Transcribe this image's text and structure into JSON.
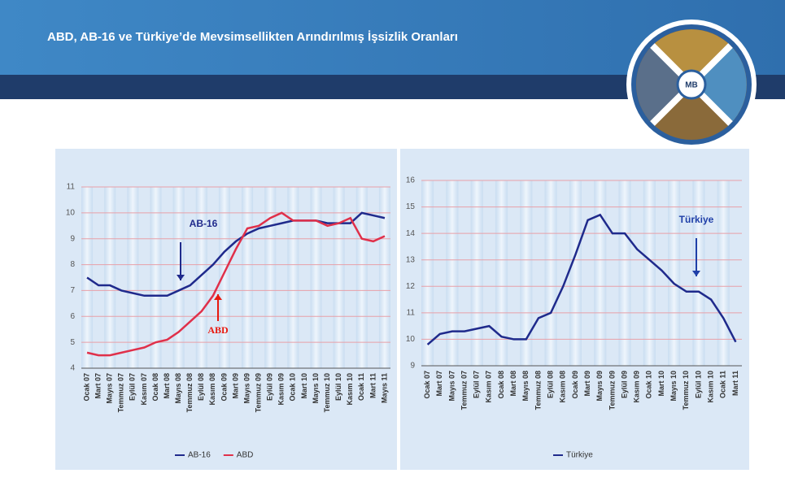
{
  "title": "ABD, AB-16 ve Türkiye’de Mevsimsellikten Arındırılmış İşsizlik Oranları",
  "chart_data": [
    {
      "type": "line",
      "categories": [
        "Ocak 07",
        "Mart 07",
        "Mayıs 07",
        "Temmuz 07",
        "Eylül 07",
        "Kasım 07",
        "Ocak 08",
        "Mart 08",
        "Mayıs 08",
        "Temmuz 08",
        "Eylül 08",
        "Kasım 08",
        "Ocak 09",
        "Mart 09",
        "Mayıs 09",
        "Temmuz 09",
        "Eylül 09",
        "Kasım 09",
        "Ocak 10",
        "Mart 10",
        "Mayıs 10",
        "Temmuz 10",
        "Eylül 10",
        "Kasım 10",
        "Ocak 11",
        "Mart 11",
        "Mayıs 11"
      ],
      "series": [
        {
          "name": "AB-16",
          "color": "#1f2a8c",
          "values": [
            7.5,
            7.2,
            7.2,
            7.0,
            6.9,
            6.8,
            6.8,
            6.8,
            7.0,
            7.2,
            7.6,
            8.0,
            8.5,
            8.9,
            9.2,
            9.4,
            9.5,
            9.6,
            9.7,
            9.7,
            9.7,
            9.6,
            9.6,
            9.6,
            10.0,
            9.9,
            9.8
          ]
        },
        {
          "name": "ABD",
          "color": "#e0304a",
          "values": [
            4.6,
            4.5,
            4.5,
            4.6,
            4.7,
            4.8,
            5.0,
            5.1,
            5.4,
            5.8,
            6.2,
            6.8,
            7.7,
            8.6,
            9.4,
            9.5,
            9.8,
            10.0,
            9.7,
            9.7,
            9.7,
            9.5,
            9.6,
            9.8,
            9.0,
            8.9,
            9.1
          ]
        }
      ],
      "annotations": [
        {
          "text": "AB-16",
          "color": "#1f2a8c"
        },
        {
          "text": "ABD",
          "color": "#e8190f"
        }
      ],
      "ylim": [
        4,
        11
      ],
      "yticks": [
        4,
        5,
        6,
        7,
        8,
        9,
        10,
        11
      ],
      "grid": true
    },
    {
      "type": "line",
      "categories": [
        "Ocak 07",
        "Mart 07",
        "Mayıs 07",
        "Temmuz 07",
        "Eylül 07",
        "Kasım 07",
        "Ocak 08",
        "Mart 08",
        "Mayıs 08",
        "Temmuz 08",
        "Eylül 08",
        "Kasım 08",
        "Ocak 09",
        "Mart 09",
        "Mayıs 09",
        "Temmuz 09",
        "Eylül 09",
        "Kasım 09",
        "Ocak 10",
        "Mart 10",
        "Mayıs 10",
        "Temmuz 10",
        "Eylül 10",
        "Kasım 10",
        "Ocak 11",
        "Mart 11"
      ],
      "series": [
        {
          "name": "Türkiye",
          "color": "#1f2a8c",
          "values": [
            9.8,
            10.2,
            10.3,
            10.3,
            10.4,
            10.5,
            10.1,
            10.0,
            10.0,
            10.8,
            11.0,
            12.0,
            13.2,
            14.5,
            14.7,
            14.0,
            14.0,
            13.4,
            13.0,
            12.6,
            12.1,
            11.8,
            11.8,
            11.5,
            10.8,
            9.9
          ]
        }
      ],
      "annotations": [
        {
          "text": "Türkiye",
          "color": "#1f3fa8"
        }
      ],
      "ylim": [
        9,
        16
      ],
      "yticks": [
        9,
        10,
        11,
        12,
        13,
        14,
        15,
        16
      ],
      "grid": true
    }
  ]
}
